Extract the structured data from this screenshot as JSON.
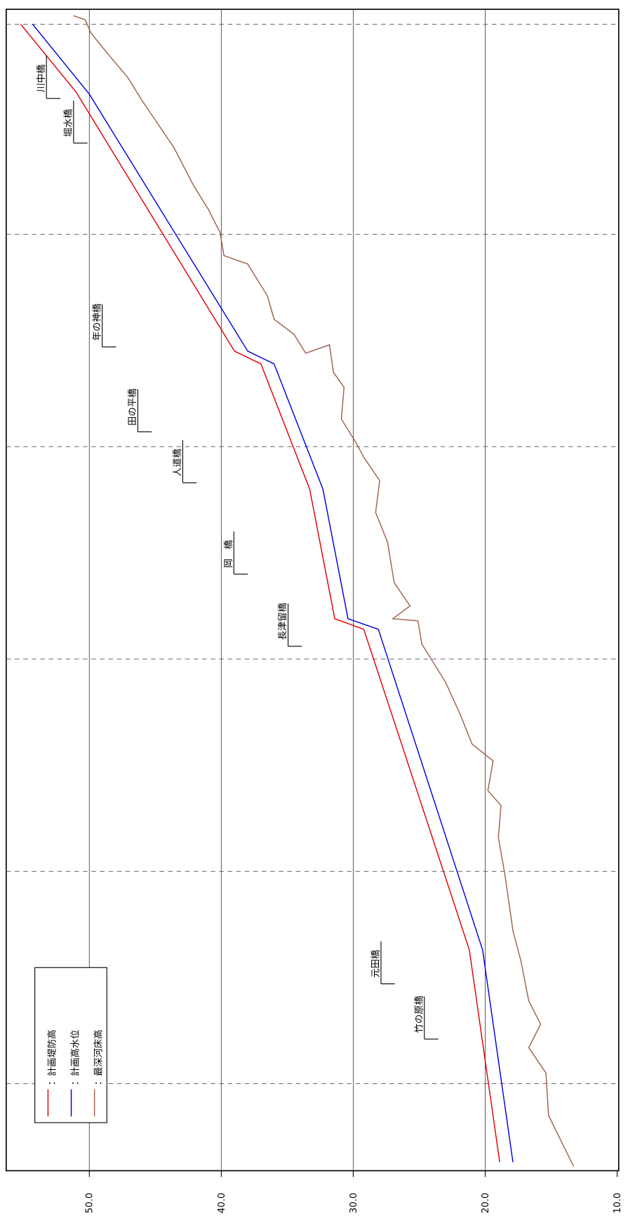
{
  "chart_data": {
    "type": "line",
    "series": [
      {
        "name": "：計画堤防高",
        "color": "#e00000",
        "x": [
          0.04,
          1.04,
          2.55,
          2.6,
          3.21,
          3.8,
          3.86,
          5.08,
          5.4
        ],
        "values": [
          18.9,
          21.2,
          29.2,
          31.4,
          33.3,
          37.0,
          39.0,
          51.0,
          55.2
        ]
      },
      {
        "name": "：計画高水位",
        "color": "#0000e0",
        "x": [
          0.04,
          1.04,
          2.55,
          2.6,
          3.21,
          3.8,
          3.86,
          5.07,
          5.4
        ],
        "values": [
          17.9,
          20.2,
          28.1,
          30.4,
          32.3,
          36.0,
          38.0,
          50.0,
          54.3
        ]
      },
      {
        "name": "：最深河床高",
        "color": "#a0604a",
        "x": [
          0.02,
          0.26,
          0.46,
          0.58,
          0.69,
          0.8,
          0.99,
          1.13,
          1.39,
          1.57,
          1.72,
          1.79,
          1.93,
          2.01,
          2.15,
          2.3,
          2.48,
          2.59,
          2.6,
          2.66,
          2.77,
          2.96,
          3.1,
          3.25,
          3.36,
          3.43,
          3.54,
          3.69,
          3.76,
          3.89,
          3.85,
          3.94,
          4.01,
          4.12,
          4.27,
          4.31,
          4.42,
          4.53,
          4.64,
          4.82,
          4.93,
          5.04,
          5.15,
          5.26,
          5.36,
          5.42,
          5.44
        ],
        "values": [
          13.3,
          15.2,
          15.4,
          16.7,
          15.8,
          16.7,
          17.3,
          17.9,
          18.5,
          19.0,
          18.8,
          19.8,
          19.4,
          21.0,
          21.9,
          23.0,
          24.8,
          25.1,
          27.0,
          25.7,
          26.9,
          27.4,
          28.3,
          28.0,
          29.2,
          29.8,
          30.9,
          30.7,
          31.5,
          31.8,
          33.6,
          34.5,
          36.0,
          36.5,
          38.0,
          39.8,
          40.1,
          41.0,
          42.1,
          43.6,
          44.8,
          46.0,
          47.1,
          48.6,
          49.9,
          50.3,
          51.2
        ]
      }
    ],
    "xlim": [
      0,
      5.47
    ],
    "xticks": [
      0.41,
      1.41,
      2.41,
      3.41,
      4.41,
      5.4
    ],
    "ylim": [
      10,
      56.3
    ],
    "yticks": [
      {
        "value": 10,
        "label": "10.0"
      },
      {
        "value": 20,
        "label": "20.0"
      },
      {
        "value": 30,
        "label": "30.0"
      },
      {
        "value": 40,
        "label": "40.0"
      },
      {
        "value": 50,
        "label": "50.0"
      }
    ],
    "grid": true,
    "legend": "lower left",
    "annotations": [
      {
        "label": "川中橋",
        "x": 5.05
      },
      {
        "label": "堀水橋",
        "x": 4.84
      },
      {
        "label": "年の神橋",
        "x": 3.88
      },
      {
        "label": "田の平橋",
        "x": 3.48
      },
      {
        "label": "人道橋",
        "x": 3.24
      },
      {
        "label": "岡　橋",
        "x": 2.81
      },
      {
        "label": "長津留橋",
        "x": 2.47
      },
      {
        "label": "元田橋",
        "x": 0.88
      },
      {
        "label": "竹の原橋",
        "x": 0.62
      }
    ]
  }
}
